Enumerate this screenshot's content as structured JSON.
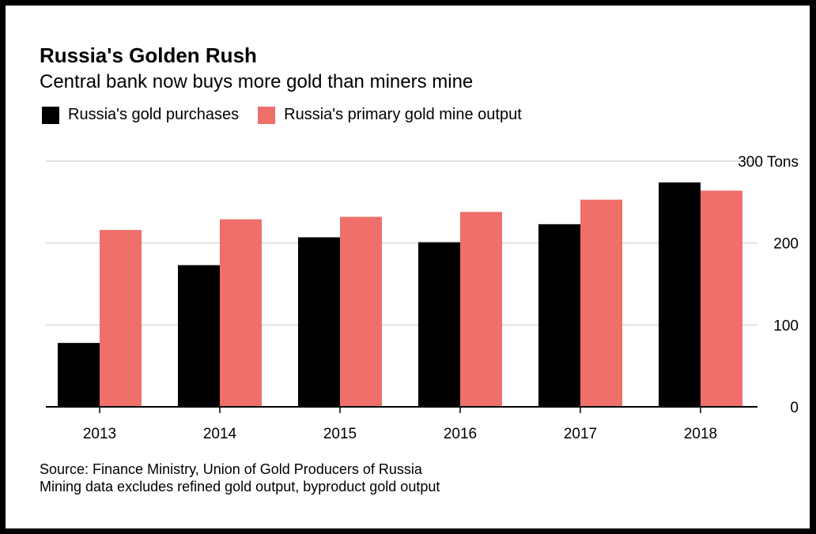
{
  "chart_data": {
    "type": "bar",
    "title": "Russia's Golden Rush",
    "subtitle": "Central bank now buys more gold than miners mine",
    "categories": [
      "2013",
      "2014",
      "2015",
      "2016",
      "2017",
      "2018"
    ],
    "series": [
      {
        "name": "Russia's gold purchases",
        "color": "#000000",
        "values": [
          78,
          173,
          207,
          201,
          223,
          274
        ]
      },
      {
        "name": "Russia's primary gold mine output",
        "color": "#ef6f6a",
        "values": [
          216,
          229,
          232,
          238,
          253,
          264
        ]
      }
    ],
    "ylim": [
      0,
      300
    ],
    "yticks": [
      0,
      100,
      200,
      300
    ],
    "ytick_labels": [
      "0",
      "100",
      "200",
      "300 Tons"
    ],
    "ylabel": "Tons",
    "xlabel": "",
    "legend_position": "top-left",
    "grid": true,
    "source_lines": [
      "Source: Finance Ministry, Union of Gold Producers of Russia",
      "Mining data excludes refined gold output, byproduct gold output"
    ]
  }
}
